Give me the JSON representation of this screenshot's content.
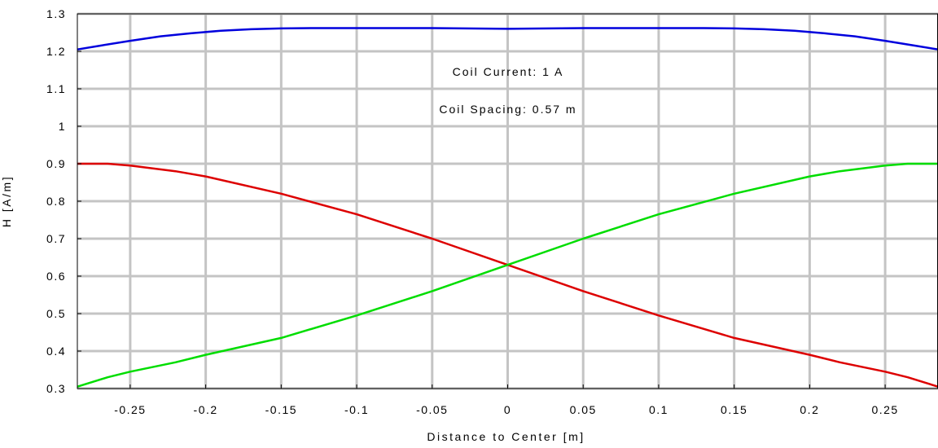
{
  "chart_data": {
    "type": "line",
    "xlabel": "Distance to Center [m]",
    "ylabel": "H [A/m]",
    "xlim": [
      -0.285,
      0.285
    ],
    "ylim": [
      0.3,
      1.3
    ],
    "x_ticks": [
      -0.25,
      -0.2,
      -0.15,
      -0.1,
      -0.05,
      0,
      0.05,
      0.1,
      0.15,
      0.2,
      0.25
    ],
    "x_tick_labels": [
      "-0.25",
      "-0.2",
      "-0.15",
      "-0.1",
      "-0.05",
      "0",
      "0.05",
      "0.1",
      "0.15",
      "0.2",
      "0.25"
    ],
    "y_ticks": [
      0.3,
      0.4,
      0.5,
      0.6,
      0.7,
      0.8,
      0.9,
      1.0,
      1.1,
      1.2,
      1.3
    ],
    "y_tick_labels": [
      "0.3",
      "0.4",
      "0.5",
      "0.6",
      "0.7",
      "0.8",
      "0.9",
      "1",
      "1.1",
      "1.2",
      "1.3"
    ],
    "grid": true,
    "annotations": [
      "Coil Current: 1 A",
      "Coil Spacing: 0.57 m"
    ],
    "series": [
      {
        "color": "#0000dd",
        "x": [
          -0.285,
          -0.27,
          -0.25,
          -0.23,
          -0.21,
          -0.19,
          -0.17,
          -0.15,
          -0.13,
          -0.1,
          -0.05,
          0,
          0.05,
          0.1,
          0.13,
          0.15,
          0.17,
          0.19,
          0.21,
          0.23,
          0.25,
          0.27,
          0.285
        ],
        "y": [
          1.205,
          1.215,
          1.228,
          1.24,
          1.248,
          1.255,
          1.259,
          1.261,
          1.262,
          1.262,
          1.262,
          1.26,
          1.262,
          1.262,
          1.262,
          1.261,
          1.259,
          1.255,
          1.248,
          1.24,
          1.228,
          1.215,
          1.205
        ]
      },
      {
        "color": "#dd0000",
        "x": [
          -0.285,
          -0.265,
          -0.25,
          -0.22,
          -0.2,
          -0.15,
          -0.1,
          -0.05,
          0,
          0.05,
          0.1,
          0.15,
          0.2,
          0.22,
          0.25,
          0.265,
          0.285
        ],
        "y": [
          0.9,
          0.9,
          0.895,
          0.88,
          0.866,
          0.82,
          0.765,
          0.7,
          0.63,
          0.56,
          0.495,
          0.435,
          0.39,
          0.37,
          0.345,
          0.33,
          0.305
        ]
      },
      {
        "color": "#00dd00",
        "x": [
          -0.285,
          -0.265,
          -0.25,
          -0.22,
          -0.2,
          -0.15,
          -0.1,
          -0.05,
          0,
          0.05,
          0.1,
          0.15,
          0.2,
          0.22,
          0.25,
          0.265,
          0.285
        ],
        "y": [
          0.305,
          0.33,
          0.345,
          0.37,
          0.39,
          0.435,
          0.495,
          0.56,
          0.63,
          0.7,
          0.765,
          0.82,
          0.866,
          0.88,
          0.895,
          0.9,
          0.9
        ]
      }
    ]
  }
}
